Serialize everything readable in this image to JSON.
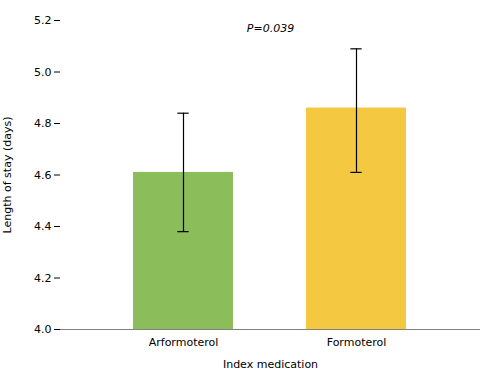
{
  "chart_data": {
    "type": "bar",
    "categories": [
      "Arformoterol",
      "Formoterol"
    ],
    "values": [
      4.61,
      4.86
    ],
    "ci_lower": [
      4.38,
      4.61
    ],
    "ci_upper": [
      4.84,
      5.09
    ],
    "colors": [
      "#8BBD5A",
      "#F5C842"
    ],
    "ylabel": "Length of stay (days)",
    "xlabel": "Index medication",
    "annotation": "P=0.039",
    "ylim": [
      4.0,
      5.2
    ],
    "yticks": [
      {
        "value": 4.0,
        "label": "4.0"
      },
      4.2,
      4.4,
      4.6,
      4.8,
      {
        "value": 5.0,
        "label": "5.0"
      },
      5.2
    ],
    "grid": false
  }
}
